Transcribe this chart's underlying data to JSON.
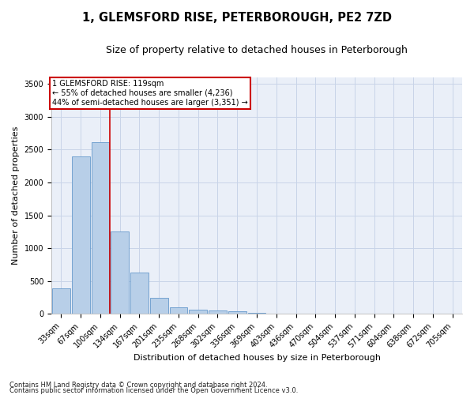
{
  "title": "1, GLEMSFORD RISE, PETERBOROUGH, PE2 7ZD",
  "subtitle": "Size of property relative to detached houses in Peterborough",
  "xlabel": "Distribution of detached houses by size in Peterborough",
  "ylabel": "Number of detached properties",
  "footnote1": "Contains HM Land Registry data © Crown copyright and database right 2024.",
  "footnote2": "Contains public sector information licensed under the Open Government Licence v3.0.",
  "categories": [
    "33sqm",
    "67sqm",
    "100sqm",
    "134sqm",
    "167sqm",
    "201sqm",
    "235sqm",
    "268sqm",
    "302sqm",
    "336sqm",
    "369sqm",
    "403sqm",
    "436sqm",
    "470sqm",
    "504sqm",
    "537sqm",
    "571sqm",
    "604sqm",
    "638sqm",
    "672sqm",
    "705sqm"
  ],
  "bar_values": [
    390,
    2400,
    2610,
    1250,
    630,
    250,
    100,
    65,
    50,
    40,
    15,
    5,
    5,
    5,
    5,
    0,
    0,
    0,
    0,
    0,
    0
  ],
  "bar_color": "#b8cfe8",
  "bar_edge_color": "#6699cc",
  "grid_color": "#c8d4e8",
  "background_color": "#eaeff8",
  "annotation_line1": "1 GLEMSFORD RISE: 119sqm",
  "annotation_line2": "← 55% of detached houses are smaller (4,236)",
  "annotation_line3": "44% of semi-detached houses are larger (3,351) →",
  "annotation_box_color": "#ffffff",
  "annotation_border_color": "#cc0000",
  "vline_color": "#cc0000",
  "vline_x_index": 3.0,
  "ylim": [
    0,
    3600
  ],
  "yticks": [
    0,
    500,
    1000,
    1500,
    2000,
    2500,
    3000,
    3500
  ],
  "title_fontsize": 10.5,
  "subtitle_fontsize": 9,
  "xlabel_fontsize": 8,
  "ylabel_fontsize": 8,
  "tick_fontsize": 7,
  "footnote_fontsize": 6
}
